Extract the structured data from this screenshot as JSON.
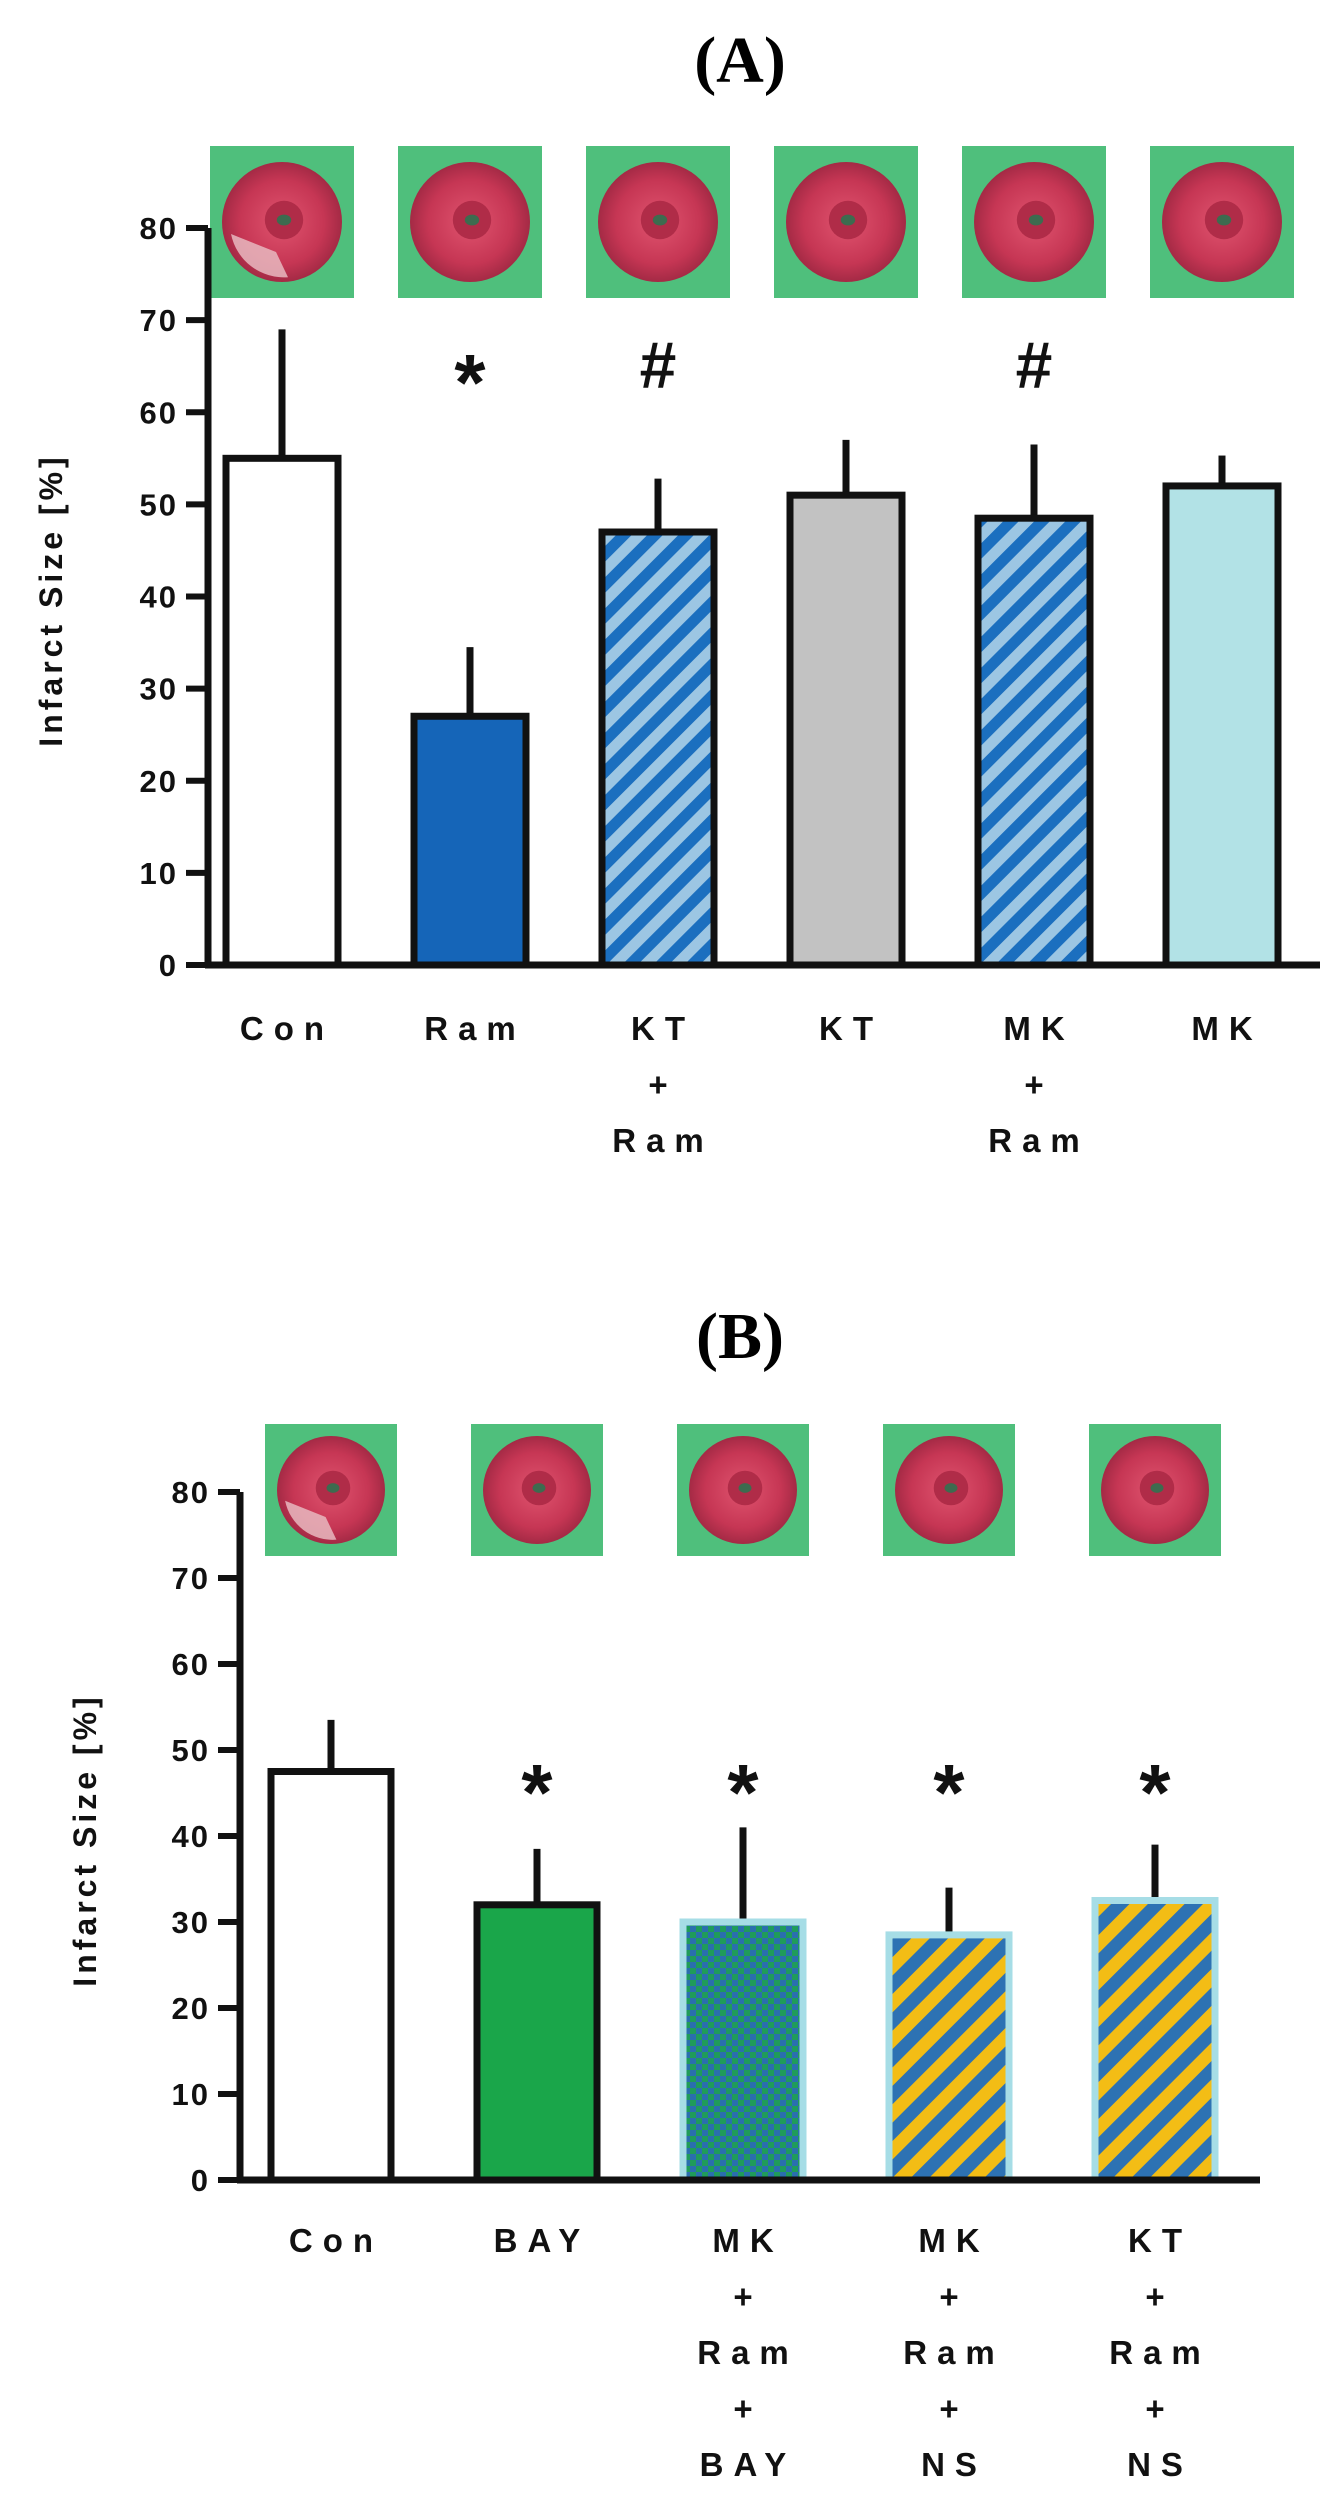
{
  "colors": {
    "tile_bg": "#4fbf7c",
    "heart_outer": "#c43452",
    "heart_inner": "#d8435f",
    "pale_tissue": "#e7b9c0",
    "axis": "#111111"
  },
  "chart_data": [
    {
      "type": "bar",
      "panel_label": "(A)",
      "ylabel": "Infarct Size [%]",
      "ylim": [
        0,
        80
      ],
      "yticks": [
        "0",
        "10",
        "20",
        "30",
        "40",
        "50",
        "60",
        "70",
        "80"
      ],
      "categories": [
        {
          "label_lines": [
            "Con"
          ],
          "value": 55,
          "error": 14,
          "fill": "white",
          "annotation": ""
        },
        {
          "label_lines": [
            "Ram"
          ],
          "value": 27,
          "error": 7.5,
          "fill": "solid-blue",
          "annotation": "*"
        },
        {
          "label_lines": [
            "KT",
            "+",
            "Ram"
          ],
          "value": 47,
          "error": 5.8,
          "fill": "hatch-blue-light",
          "annotation": "#"
        },
        {
          "label_lines": [
            "KT"
          ],
          "value": 51,
          "error": 6,
          "fill": "solid-gray",
          "annotation": ""
        },
        {
          "label_lines": [
            "MK",
            "+",
            "Ram"
          ],
          "value": 48.5,
          "error": 8,
          "fill": "hatch-blue-light",
          "annotation": "#"
        },
        {
          "label_lines": [
            "MK"
          ],
          "value": 52,
          "error": 3.3,
          "fill": "solid-lightcyan",
          "annotation": ""
        }
      ]
    },
    {
      "type": "bar",
      "panel_label": "(B)",
      "ylabel": "Infarct Size [%]",
      "ylim": [
        0,
        80
      ],
      "yticks": [
        "0",
        "10",
        "20",
        "30",
        "40",
        "50",
        "60",
        "70",
        "80"
      ],
      "categories": [
        {
          "label_lines": [
            "Con"
          ],
          "value": 47.5,
          "error": 6,
          "fill": "white",
          "annotation": ""
        },
        {
          "label_lines": [
            "BAY"
          ],
          "value": 32,
          "error": 6.5,
          "fill": "solid-green",
          "annotation": "*"
        },
        {
          "label_lines": [
            "MK",
            "+",
            "Ram",
            "+",
            "BAY"
          ],
          "value": 30,
          "error": 11,
          "fill": "grid-green-blue",
          "annotation": "*"
        },
        {
          "label_lines": [
            "MK",
            "+",
            "Ram",
            "+",
            "NS"
          ],
          "value": 28.5,
          "error": 5.5,
          "fill": "hatch-blue-yellow",
          "annotation": "*"
        },
        {
          "label_lines": [
            "KT",
            "+",
            "Ram",
            "+",
            "NS"
          ],
          "value": 32.5,
          "error": 6.5,
          "fill": "hatch-blue-yellow",
          "annotation": "*"
        }
      ]
    }
  ]
}
